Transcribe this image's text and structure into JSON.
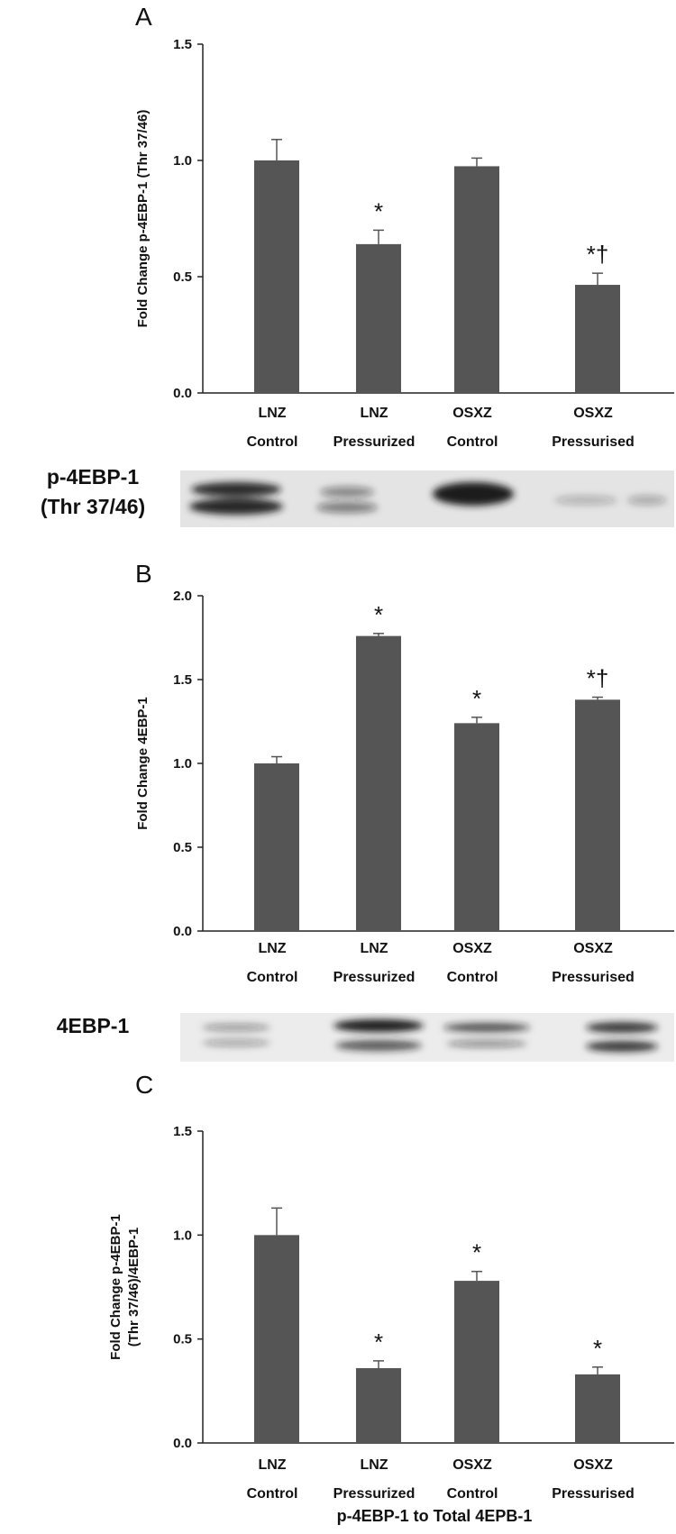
{
  "chart_data": [
    {
      "type": "bar",
      "panel": "A",
      "y_label": [
        "Fold Change  p-4EBP-1 (Thr 37/46)"
      ],
      "categories": [
        [
          "LNZ",
          "Control"
        ],
        [
          "LNZ",
          "Pressurized"
        ],
        [
          "OSXZ",
          "Control"
        ],
        [
          "OSXZ",
          "Pressurised"
        ]
      ],
      "values": [
        1.0,
        0.64,
        0.975,
        0.465
      ],
      "errors": [
        0.09,
        0.06,
        0.035,
        0.05
      ],
      "annotations": [
        null,
        "*",
        null,
        "*†"
      ],
      "color": "#555555",
      "ylim": [
        0,
        1.5
      ],
      "yticks": [
        {
          "value": 0,
          "label": "0.0"
        },
        {
          "value": 0.5,
          "label": "0.5"
        },
        {
          "value": 1,
          "label": "1.0"
        },
        {
          "value": 1.5,
          "label": "1.5"
        }
      ],
      "blot_label": [
        "p-4EBP-1",
        "(Thr 37/46)"
      ]
    },
    {
      "type": "bar",
      "panel": "B",
      "y_label": [
        "Fold Change  4EBP-1"
      ],
      "categories": [
        [
          "LNZ",
          "Control"
        ],
        [
          "LNZ",
          "Pressurized"
        ],
        [
          "OSXZ",
          "Control"
        ],
        [
          "OSXZ",
          "Pressurised"
        ]
      ],
      "values": [
        1.0,
        1.76,
        1.24,
        1.38
      ],
      "errors": [
        0.04,
        0.015,
        0.035,
        0.015
      ],
      "annotations": [
        null,
        "*",
        "*",
        "*†"
      ],
      "color": "#555555",
      "ylim": [
        0,
        2
      ],
      "yticks": [
        {
          "value": 0,
          "label": "0.0"
        },
        {
          "value": 0.5,
          "label": "0.5"
        },
        {
          "value": 1,
          "label": "1.0"
        },
        {
          "value": 1.5,
          "label": "1.5"
        },
        {
          "value": 2,
          "label": "2.0"
        }
      ],
      "blot_label": [
        "4EBP-1"
      ]
    },
    {
      "type": "bar",
      "panel": "C",
      "y_label": [
        "Fold Change p-4EBP-1",
        "(Thr 37/46)/4EBP-1"
      ],
      "categories": [
        [
          "LNZ",
          "Control"
        ],
        [
          "LNZ",
          "Pressurized"
        ],
        [
          "OSXZ",
          "Control"
        ],
        [
          "OSXZ",
          "Pressurised"
        ]
      ],
      "values": [
        1.0,
        0.36,
        0.78,
        0.33
      ],
      "errors": [
        0.13,
        0.035,
        0.045,
        0.035
      ],
      "annotations": [
        null,
        "*",
        "*",
        "*"
      ],
      "color": "#555555",
      "ylim": [
        0,
        1.5
      ],
      "yticks": [
        {
          "value": 0,
          "label": "0.0"
        },
        {
          "value": 0.5,
          "label": "0.5"
        },
        {
          "value": 1,
          "label": "1.0"
        },
        {
          "value": 1.5,
          "label": "1.5"
        }
      ],
      "x_label": "p-4EBP-1 to Total 4EPB-1"
    }
  ]
}
